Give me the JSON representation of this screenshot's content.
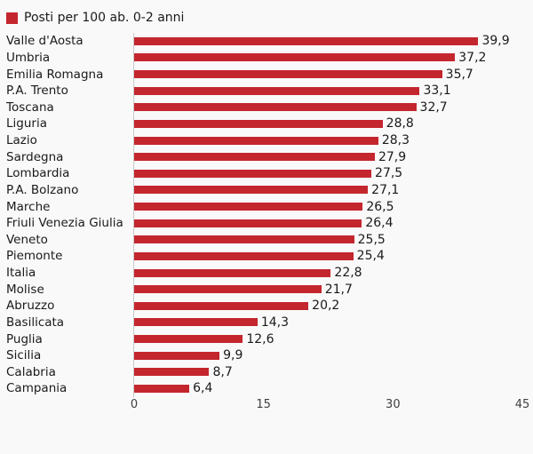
{
  "legend": {
    "label": "Posti per 100 ab. 0-2 anni"
  },
  "colors": {
    "bar": "#c4262e",
    "background": "#f9f9f9",
    "axis_line": "#c9c9c9",
    "tick_text": "#404040",
    "label_text": "#1a1a1a"
  },
  "chart_data": {
    "type": "bar",
    "orientation": "horizontal",
    "title": "Posti per 100 ab. 0-2 anni",
    "categories": [
      "Valle d'Aosta",
      "Umbria",
      "Emilia Romagna",
      "P.A. Trento",
      "Toscana",
      "Liguria",
      "Lazio",
      "Sardegna",
      "Lombardia",
      "P.A. Bolzano",
      "Marche",
      "Friuli Venezia Giulia",
      "Veneto",
      "Piemonte",
      "Italia",
      "Molise",
      "Abruzzo",
      "Basilicata",
      "Puglia",
      "Sicilia",
      "Calabria",
      "Campania"
    ],
    "values": [
      39.9,
      37.2,
      35.7,
      33.1,
      32.7,
      28.8,
      28.3,
      27.9,
      27.5,
      27.1,
      26.5,
      26.4,
      25.5,
      25.4,
      22.8,
      21.7,
      20.2,
      14.3,
      12.6,
      9.9,
      8.7,
      6.4
    ],
    "value_labels": [
      "39,9",
      "37,2",
      "35,7",
      "33,1",
      "32,7",
      "28,8",
      "28,3",
      "27,9",
      "27,5",
      "27,1",
      "26,5",
      "26,4",
      "25,5",
      "25,4",
      "22,8",
      "21,7",
      "20,2",
      "14,3",
      "12,6",
      "9,9",
      "8,7",
      "6,4"
    ],
    "xlabel": "",
    "ylabel": "",
    "xlim": [
      0,
      45
    ],
    "x_ticks": [
      {
        "value": 0,
        "label": "0"
      },
      {
        "value": 15,
        "label": "15"
      },
      {
        "value": 30,
        "label": "30"
      },
      {
        "value": 45,
        "label": "45"
      }
    ],
    "grid": false,
    "legend_position": "top-left"
  }
}
